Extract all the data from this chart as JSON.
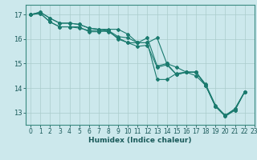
{
  "xlabel": "Humidex (Indice chaleur)",
  "background_color": "#cce8ec",
  "grid_color": "#aacccc",
  "line_color": "#1a7a6e",
  "xlim": [
    -0.5,
    23
  ],
  "ylim": [
    12.5,
    17.4
  ],
  "yticks": [
    13,
    14,
    15,
    16,
    17
  ],
  "xticks": [
    0,
    1,
    2,
    3,
    4,
    5,
    6,
    7,
    8,
    9,
    10,
    11,
    12,
    13,
    14,
    15,
    16,
    17,
    18,
    19,
    20,
    21,
    22,
    23
  ],
  "lines": [
    [
      0,
      17.0,
      1,
      17.1,
      2,
      16.85,
      3,
      16.65,
      4,
      16.65,
      5,
      16.6,
      6,
      16.45,
      7,
      16.4,
      8,
      16.4,
      9,
      16.4,
      10,
      16.2,
      11,
      15.85,
      12,
      15.85,
      13,
      16.05,
      14,
      15.0,
      15,
      14.85,
      16,
      14.65,
      17,
      14.65,
      18,
      14.15,
      19,
      13.3,
      20,
      12.88,
      21,
      13.15,
      22,
      13.85
    ],
    [
      0,
      17.0,
      1,
      17.1,
      2,
      16.85,
      3,
      16.65,
      4,
      16.65,
      5,
      16.6,
      6,
      16.45,
      7,
      16.4,
      8,
      16.35,
      9,
      16.0,
      10,
      15.85,
      11,
      15.85,
      12,
      15.85,
      13,
      14.35,
      14,
      14.35,
      15,
      14.6,
      16,
      14.65,
      17,
      14.5,
      18,
      14.1,
      19,
      13.25,
      20,
      12.88,
      21,
      13.15,
      22,
      13.85
    ],
    [
      0,
      17.0,
      1,
      17.05,
      2,
      16.7,
      3,
      16.5,
      4,
      16.5,
      5,
      16.5,
      6,
      16.3,
      7,
      16.3,
      8,
      16.35,
      9,
      16.1,
      10,
      16.05,
      11,
      15.85,
      12,
      16.05,
      13,
      14.9,
      14,
      15.0,
      15,
      14.55,
      16,
      14.65,
      17,
      14.65,
      18,
      14.1,
      19,
      13.25,
      20,
      12.85,
      21,
      13.1,
      22,
      13.85
    ],
    [
      0,
      17.0,
      1,
      17.05,
      2,
      16.7,
      3,
      16.5,
      4,
      16.5,
      5,
      16.45,
      6,
      16.35,
      7,
      16.35,
      8,
      16.3,
      9,
      16.05,
      10,
      15.85,
      11,
      15.7,
      12,
      15.75,
      13,
      14.85,
      14,
      14.95,
      15,
      14.55,
      16,
      14.65,
      17,
      14.65,
      18,
      14.1,
      19,
      13.25,
      20,
      12.85,
      21,
      13.1,
      22,
      13.85
    ]
  ]
}
